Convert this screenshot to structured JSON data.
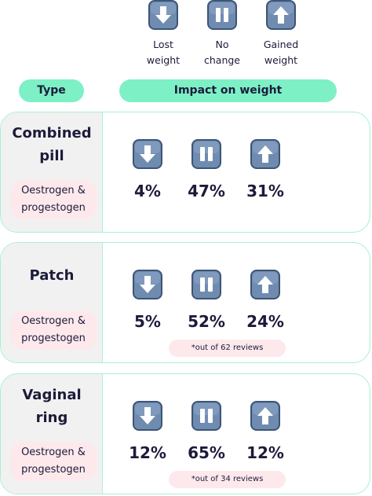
{
  "legend": [
    {
      "lines": [
        "Lost",
        "weight"
      ]
    },
    {
      "lines": [
        "No",
        "change"
      ]
    },
    {
      "lines": [
        "Gained",
        "weight"
      ]
    }
  ],
  "header": {
    "type": "Type",
    "impact": "Impact on weight"
  },
  "rows": [
    {
      "title": [
        "Combined",
        "pill"
      ],
      "hormones": [
        "Oestrogen &",
        "progestogen"
      ],
      "results": [
        "4%",
        "47%",
        "31%"
      ]
    },
    {
      "title": [
        "Patch"
      ],
      "hormones": [
        "Oestrogen &",
        "progestogen"
      ],
      "results": [
        "5%",
        "52%",
        "24%"
      ],
      "note": "*out of 62 reviews"
    },
    {
      "title": [
        "Vaginal",
        "ring"
      ],
      "hormones": [
        "Oestrogen &",
        "progestogen"
      ],
      "results": [
        "12%",
        "65%",
        "12%"
      ],
      "note": "*out of 34 reviews"
    }
  ]
}
